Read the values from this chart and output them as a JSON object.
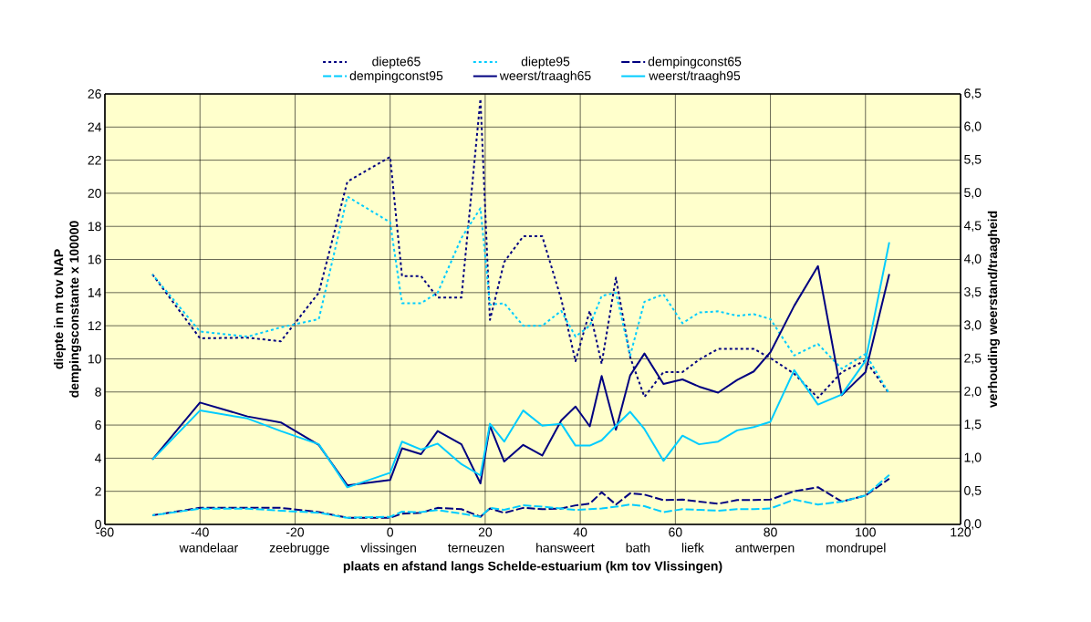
{
  "chart_data": {
    "type": "line",
    "xlabel": "plaats en afstand  langs Schelde-estuarium (km tov Vlissingen)",
    "ylabel": "diepte in m tov NAP",
    "y2label": "verhouding weerstand/traagheid",
    "annotations": [
      "dempingsconstante x 100000",
      "wandelaar",
      "zeebrugge",
      "vlissingen",
      "terneuzen",
      "hansweert",
      "bath",
      "liefk",
      "antwerpen",
      "mondrupel"
    ],
    "x": [
      -50,
      -40,
      -30,
      -23,
      -15,
      -9,
      0,
      2.5,
      6.5,
      10,
      15,
      19,
      21,
      24,
      28,
      32,
      36,
      39,
      42,
      44.5,
      47.5,
      50.5,
      53.5,
      57.5,
      61.5,
      65,
      69,
      73,
      76.5,
      80,
      85,
      90,
      95,
      100,
      105
    ],
    "series": [
      {
        "name": "diepte65",
        "color": "#000080",
        "line_style": "dotted",
        "values": [
          15.1,
          11.24,
          11.28,
          11.06,
          14.0,
          20.7,
          22.2,
          15.0,
          15.0,
          13.7,
          13.7,
          25.7,
          12.35,
          15.85,
          17.4,
          17.4,
          13.6,
          9.86,
          12.9,
          9.7,
          14.9,
          10.1,
          7.7,
          9.2,
          9.2,
          9.95,
          10.6,
          10.6,
          10.6,
          10.05,
          9.1,
          7.65,
          9.2,
          9.9,
          7.9
        ]
      },
      {
        "name": "diepte95",
        "color": "#00ccff",
        "line_style": "dotted",
        "values": [
          15.1,
          11.65,
          11.34,
          11.9,
          12.4,
          19.8,
          18.25,
          13.36,
          13.36,
          14.0,
          17.3,
          19.1,
          13.27,
          13.36,
          12.0,
          12.0,
          12.9,
          11.34,
          12.0,
          13.8,
          14.0,
          10.2,
          13.45,
          13.9,
          12.15,
          12.8,
          12.87,
          12.6,
          12.7,
          12.4,
          10.2,
          10.9,
          9.4,
          10.3,
          7.9
        ]
      },
      {
        "name": "dempingconst65",
        "color": "#000080",
        "line_style": "dashed",
        "values": [
          0.55,
          1.0,
          1.0,
          1.0,
          0.75,
          0.4,
          0.4,
          0.65,
          0.7,
          1.0,
          0.92,
          0.46,
          0.96,
          0.7,
          1.0,
          0.92,
          0.96,
          1.15,
          1.25,
          1.94,
          1.2,
          1.88,
          1.8,
          1.47,
          1.5,
          1.38,
          1.25,
          1.47,
          1.47,
          1.5,
          2.0,
          2.25,
          1.38,
          1.75,
          2.76
        ]
      },
      {
        "name": "dempingconst95",
        "color": "#00ccff",
        "line_style": "dashed",
        "values": [
          0.55,
          0.95,
          0.95,
          0.83,
          0.7,
          0.4,
          0.46,
          0.77,
          0.74,
          0.87,
          0.65,
          0.46,
          1.0,
          0.88,
          1.15,
          1.07,
          0.96,
          0.88,
          0.92,
          0.96,
          1.07,
          1.2,
          1.1,
          0.74,
          0.92,
          0.88,
          0.83,
          0.92,
          0.92,
          0.96,
          1.5,
          1.2,
          1.38,
          1.75,
          2.99
        ]
      },
      {
        "name": "weerst/traagh65",
        "color": "#000080",
        "line_style": "solid",
        "axis": "y2",
        "values": [
          0.98,
          1.84,
          1.63,
          1.54,
          1.2,
          0.59,
          0.67,
          1.15,
          1.06,
          1.41,
          1.21,
          0.62,
          1.49,
          0.95,
          1.2,
          1.04,
          1.57,
          1.78,
          1.48,
          2.24,
          1.43,
          2.25,
          2.58,
          2.12,
          2.19,
          2.08,
          1.99,
          2.18,
          2.31,
          2.6,
          3.3,
          3.9,
          1.95,
          2.3,
          3.78
        ]
      },
      {
        "name": "weerst/traagh95",
        "color": "#00ccff",
        "line_style": "solid",
        "axis": "y2",
        "values": [
          0.98,
          1.72,
          1.6,
          1.41,
          1.21,
          0.56,
          0.78,
          1.25,
          1.13,
          1.22,
          0.91,
          0.74,
          1.52,
          1.25,
          1.72,
          1.49,
          1.52,
          1.19,
          1.19,
          1.27,
          1.49,
          1.7,
          1.44,
          0.96,
          1.34,
          1.21,
          1.25,
          1.42,
          1.47,
          1.55,
          2.33,
          1.81,
          1.96,
          2.47,
          4.26
        ]
      }
    ],
    "xlim": [
      -60,
      120
    ],
    "xticks": [
      -60,
      -40,
      -20,
      0,
      20,
      40,
      60,
      80,
      100,
      120
    ],
    "ylim": [
      0,
      26
    ],
    "yticks": [
      0,
      2,
      4,
      6,
      8,
      10,
      12,
      14,
      16,
      18,
      20,
      22,
      24,
      26
    ],
    "y2lim": [
      0,
      6.5
    ],
    "y2ticks": [
      {
        "value": 0,
        "label": "0,0"
      },
      {
        "value": 0.5,
        "label": "0,5"
      },
      {
        "value": 1,
        "label": "1,0"
      },
      {
        "value": 1.5,
        "label": "1,5"
      },
      {
        "value": 2,
        "label": "2,0"
      },
      {
        "value": 2.5,
        "label": "2,5"
      },
      {
        "value": 3,
        "label": "3,0"
      },
      {
        "value": 3.5,
        "label": "3,5"
      },
      {
        "value": 4,
        "label": "4,0"
      },
      {
        "value": 4.5,
        "label": "4,5"
      },
      {
        "value": 5,
        "label": "5,0"
      },
      {
        "value": 5.5,
        "label": "5,5"
      },
      {
        "value": 6,
        "label": "6,0"
      },
      {
        "value": 6.5,
        "label": "6,5"
      }
    ],
    "grid": true,
    "legend": "top"
  }
}
